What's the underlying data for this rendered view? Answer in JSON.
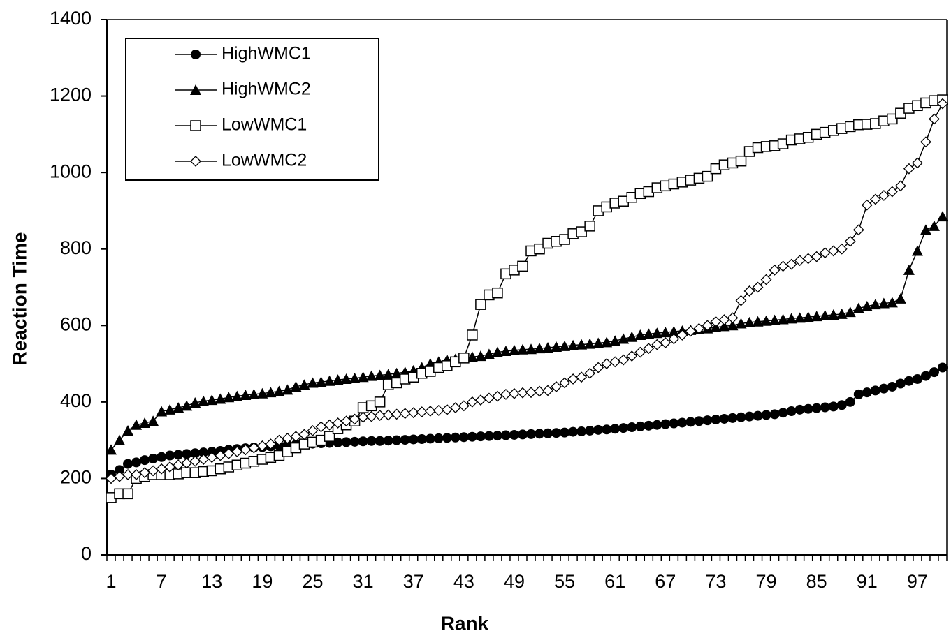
{
  "chart_data": {
    "type": "line",
    "x_label": "Rank",
    "y_label": "Reaction Time",
    "categories": [
      "1",
      null,
      null,
      null,
      null,
      null,
      "7",
      null,
      null,
      null,
      null,
      null,
      "13",
      null,
      null,
      null,
      null,
      null,
      "19",
      null,
      null,
      null,
      null,
      null,
      "25",
      null,
      null,
      null,
      null,
      null,
      "31",
      null,
      null,
      null,
      null,
      null,
      "37",
      null,
      null,
      null,
      null,
      null,
      "43",
      null,
      null,
      null,
      null,
      null,
      "49",
      null,
      null,
      null,
      null,
      null,
      "55",
      null,
      null,
      null,
      null,
      null,
      "61",
      null,
      null,
      null,
      null,
      null,
      "67",
      null,
      null,
      null,
      null,
      null,
      "73",
      null,
      null,
      null,
      null,
      null,
      "79",
      null,
      null,
      null,
      null,
      null,
      "85",
      null,
      null,
      null,
      null,
      null,
      "91",
      null,
      null,
      null,
      null,
      null,
      "97",
      null,
      null,
      null
    ],
    "ylim": [
      0,
      1400
    ],
    "yticks": [
      0,
      200,
      400,
      600,
      800,
      1000,
      1200,
      1400
    ],
    "grid": false,
    "legend": "upper left",
    "series": [
      {
        "name": "HighWMC1",
        "color": "#000000",
        "marker": "circle",
        "values": [
          210,
          222,
          238,
          242,
          248,
          252,
          256,
          260,
          262,
          264,
          266,
          268,
          270,
          272,
          275,
          277,
          279,
          281,
          282,
          284,
          286,
          288,
          289,
          290,
          291,
          292,
          293,
          294,
          295,
          296,
          297,
          298,
          298,
          299,
          300,
          301,
          302,
          303,
          304,
          305,
          306,
          307,
          308,
          309,
          310,
          311,
          312,
          313,
          314,
          315,
          316,
          317,
          318,
          319,
          320,
          322,
          323,
          325,
          327,
          328,
          330,
          332,
          334,
          336,
          338,
          340,
          342,
          344,
          346,
          348,
          350,
          352,
          354,
          356,
          358,
          360,
          362,
          364,
          366,
          368,
          372,
          376,
          380,
          382,
          384,
          386,
          388,
          392,
          400,
          420,
          425,
          430,
          435,
          440,
          448,
          455,
          460,
          468,
          478,
          490
        ]
      },
      {
        "name": "HighWMC2",
        "color": "#000000",
        "marker": "triangle",
        "values": [
          275,
          300,
          325,
          340,
          345,
          350,
          375,
          380,
          385,
          390,
          398,
          402,
          405,
          408,
          412,
          415,
          418,
          420,
          422,
          425,
          428,
          432,
          440,
          445,
          450,
          452,
          455,
          458,
          460,
          462,
          465,
          468,
          470,
          472,
          475,
          478,
          482,
          490,
          500,
          505,
          510,
          512,
          515,
          518,
          520,
          525,
          530,
          533,
          535,
          537,
          538,
          540,
          542,
          544,
          546,
          548,
          550,
          552,
          554,
          556,
          560,
          565,
          570,
          575,
          578,
          580,
          582,
          584,
          586,
          588,
          590,
          592,
          595,
          598,
          600,
          605,
          608,
          610,
          612,
          614,
          616,
          618,
          620,
          622,
          624,
          626,
          628,
          630,
          635,
          645,
          650,
          655,
          658,
          660,
          670,
          745,
          795,
          850,
          860,
          885
        ]
      },
      {
        "name": "LowWMC1",
        "color": "#000000",
        "marker": "square",
        "values": [
          150,
          160,
          160,
          200,
          205,
          210,
          210,
          210,
          212,
          215,
          215,
          218,
          220,
          225,
          230,
          235,
          240,
          245,
          250,
          255,
          260,
          270,
          280,
          290,
          295,
          300,
          310,
          330,
          340,
          350,
          385,
          390,
          400,
          445,
          450,
          460,
          465,
          475,
          480,
          490,
          495,
          505,
          515,
          575,
          655,
          680,
          685,
          735,
          745,
          755,
          795,
          800,
          815,
          820,
          825,
          840,
          845,
          860,
          900,
          910,
          920,
          925,
          935,
          945,
          950,
          960,
          965,
          970,
          975,
          980,
          985,
          990,
          1010,
          1020,
          1025,
          1030,
          1055,
          1065,
          1068,
          1070,
          1075,
          1085,
          1088,
          1092,
          1100,
          1105,
          1110,
          1115,
          1120,
          1125,
          1126,
          1128,
          1135,
          1140,
          1155,
          1168,
          1175,
          1182,
          1188,
          1190
        ]
      },
      {
        "name": "LowWMC2",
        "color": "#000000",
        "marker": "diamond",
        "values": [
          200,
          205,
          210,
          210,
          215,
          220,
          225,
          230,
          235,
          240,
          245,
          250,
          255,
          260,
          265,
          270,
          275,
          280,
          285,
          290,
          300,
          305,
          310,
          315,
          325,
          335,
          340,
          345,
          350,
          355,
          360,
          362,
          365,
          366,
          368,
          370,
          372,
          374,
          376,
          378,
          380,
          385,
          390,
          400,
          405,
          410,
          415,
          420,
          422,
          424,
          425,
          428,
          430,
          440,
          450,
          460,
          465,
          475,
          490,
          500,
          505,
          510,
          520,
          530,
          540,
          550,
          555,
          565,
          575,
          585,
          592,
          600,
          610,
          615,
          620,
          665,
          690,
          700,
          720,
          745,
          755,
          760,
          770,
          775,
          780,
          790,
          795,
          800,
          820,
          850,
          915,
          930,
          940,
          950,
          965,
          1010,
          1025,
          1080,
          1140,
          1180
        ]
      }
    ]
  }
}
